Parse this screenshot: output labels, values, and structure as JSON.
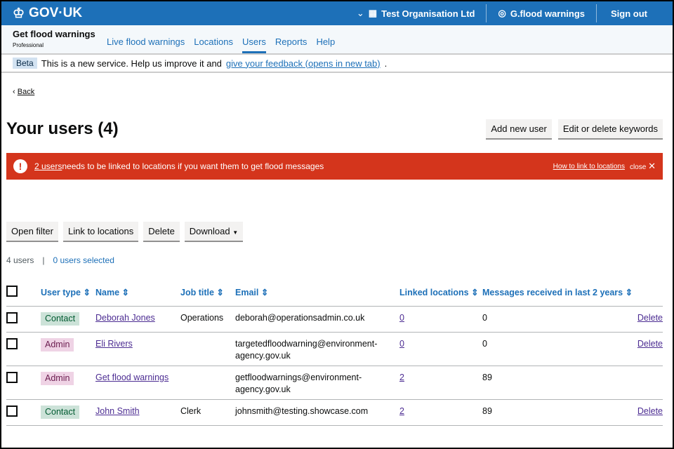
{
  "header": {
    "logo": "GOV·UK",
    "org": "Test Organisation Ltd",
    "user": "G.flood warnings",
    "signout": "Sign out"
  },
  "service": {
    "name": "Get flood warnings",
    "sub": "Professional",
    "nav": [
      "Live flood warnings",
      "Locations",
      "Users",
      "Reports",
      "Help"
    ],
    "active": "Users"
  },
  "beta": {
    "tag": "Beta",
    "text": "This is a new service. Help us improve it and",
    "link": "give your feedback (opens in new tab)",
    "end": "."
  },
  "back": "Back",
  "title": "Your users (4)",
  "buttons": {
    "add": "Add new user",
    "keywords": "Edit or delete keywords"
  },
  "alert": {
    "link": "2 users",
    "text": " needs to be linked to locations if you want them to get flood messages",
    "how": "How to link to locations",
    "close": "close"
  },
  "actions": {
    "filter": "Open filter",
    "link": "Link to locations",
    "delete": "Delete",
    "download": "Download"
  },
  "counts": {
    "total": "4 users",
    "selected": "0 users selected"
  },
  "table": {
    "headers": [
      "User type",
      "Name",
      "Job title",
      "Email",
      "Linked locations",
      "Messages received in last 2 years"
    ],
    "rows": [
      {
        "type": "Contact",
        "name": "Deborah Jones",
        "job": "Operations",
        "email": "deborah@operationsadmin.co.uk",
        "linked": "0",
        "messages": "0",
        "action": "Delete"
      },
      {
        "type": "Admin",
        "name": "Eli Rivers",
        "job": "",
        "email": "targetedfloodwarning@environment-agency.gov.uk",
        "linked": "0",
        "messages": "0",
        "action": "Delete"
      },
      {
        "type": "Admin",
        "name": "Get flood warnings",
        "job": "",
        "email": "getfloodwarnings@environment-agency.gov.uk",
        "linked": "2",
        "messages": "89",
        "action": ""
      },
      {
        "type": "Contact",
        "name": "John Smith",
        "job": "Clerk",
        "email": "johnsmith@testing.showcase.com",
        "linked": "2",
        "messages": "89",
        "action": "Delete"
      }
    ]
  },
  "colors": {
    "brand": "#1d70b8",
    "alert": "#d4351c"
  }
}
